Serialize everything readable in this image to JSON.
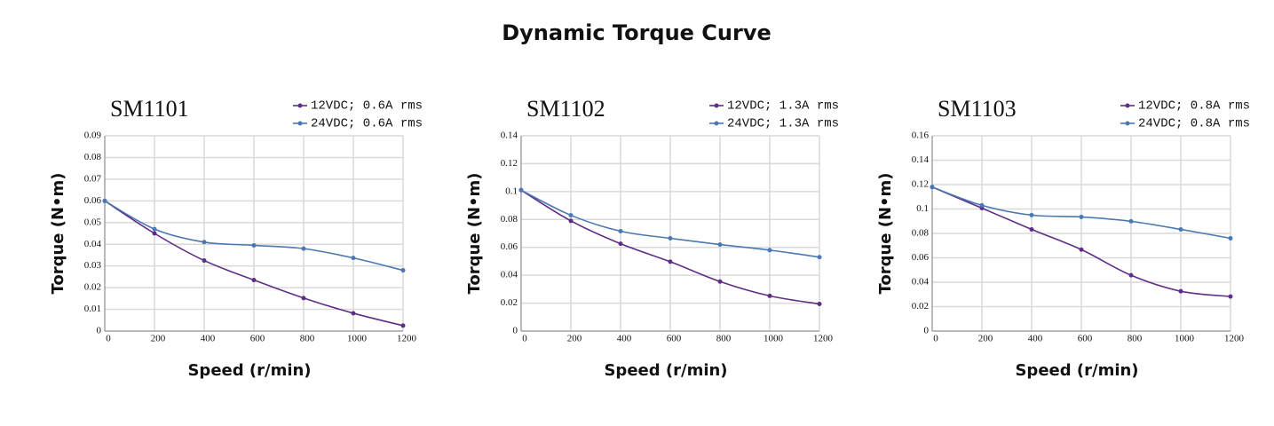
{
  "title": "Dynamic Torque Curve",
  "chart_data": [
    {
      "type": "line",
      "title": "SM1101",
      "xlabel": "Speed (r/min)",
      "ylabel": "Torque (N•m)",
      "x": [
        0,
        200,
        400,
        600,
        800,
        1000,
        1200
      ],
      "series": [
        {
          "name": "12VDC; 0.6A rms",
          "color": "#5e2d86",
          "values": [
            0.06,
            0.045,
            0.0325,
            0.0235,
            0.0152,
            0.0082,
            0.0025
          ]
        },
        {
          "name": "24VDC; 0.6A rms",
          "color": "#4a78b2",
          "values": [
            0.06,
            0.047,
            0.041,
            0.0395,
            0.038,
            0.0337,
            0.028
          ]
        }
      ],
      "xlim": [
        0,
        1200
      ],
      "xticks": [
        0,
        200,
        400,
        600,
        800,
        1000,
        1200
      ],
      "ylim": [
        0,
        0.09
      ],
      "yticks": [
        0,
        0.01,
        0.02,
        0.03,
        0.04,
        0.05,
        0.06,
        0.07,
        0.08,
        0.09
      ],
      "grid": true
    },
    {
      "type": "line",
      "title": "SM1102",
      "xlabel": "Speed (r/min)",
      "ylabel": "Torque (N•m)",
      "x": [
        0,
        200,
        400,
        600,
        800,
        1000,
        1200
      ],
      "series": [
        {
          "name": "12VDC; 1.3A rms",
          "color": "#5e2d86",
          "values": [
            0.101,
            0.079,
            0.0626,
            0.0497,
            0.0355,
            0.0252,
            0.0194
          ]
        },
        {
          "name": "24VDC; 1.3A rms",
          "color": "#4a78b2",
          "values": [
            0.101,
            0.083,
            0.0716,
            0.0665,
            0.062,
            0.058,
            0.053
          ]
        }
      ],
      "xlim": [
        0,
        1200
      ],
      "xticks": [
        0,
        200,
        400,
        600,
        800,
        1000,
        1200
      ],
      "ylim": [
        0,
        0.14
      ],
      "yticks": [
        0,
        0.02,
        0.04,
        0.06,
        0.08,
        0.1,
        0.12,
        0.14
      ],
      "grid": true
    },
    {
      "type": "line",
      "title": "SM1103",
      "xlabel": "Speed (r/min)",
      "ylabel": "Torque (N•m)",
      "x": [
        0,
        200,
        400,
        600,
        800,
        1000,
        1200
      ],
      "series": [
        {
          "name": "12VDC; 0.8A rms",
          "color": "#5e2d86",
          "values": [
            0.118,
            0.1007,
            0.0833,
            0.0667,
            0.0457,
            0.0326,
            0.0283
          ]
        },
        {
          "name": "24VDC; 0.8A rms",
          "color": "#4a78b2",
          "values": [
            0.118,
            0.103,
            0.095,
            0.0935,
            0.0899,
            0.0833,
            0.076
          ]
        }
      ],
      "xlim": [
        0,
        1200
      ],
      "xticks": [
        0,
        200,
        400,
        600,
        800,
        1000,
        1200
      ],
      "ylim": [
        0,
        0.16
      ],
      "yticks": [
        0,
        0.02,
        0.04,
        0.06,
        0.08,
        0.1,
        0.12,
        0.14,
        0.16
      ],
      "grid": true
    }
  ]
}
